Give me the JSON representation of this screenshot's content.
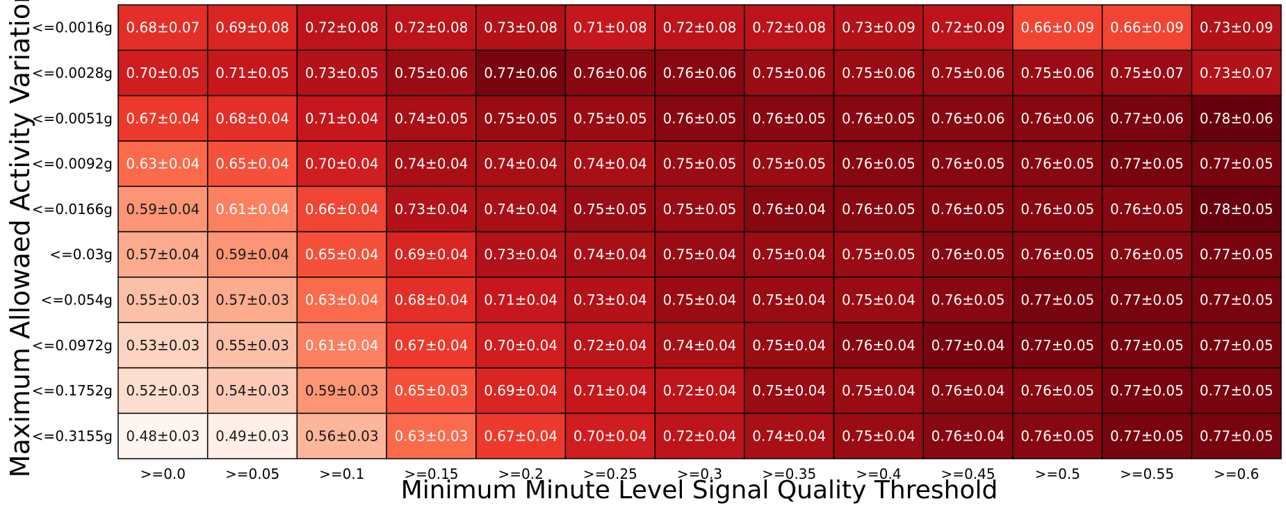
{
  "chart_data": {
    "type": "heatmap",
    "xlabel": "Minimum Minute Level Signal Quality Threshold",
    "ylabel": "Maximum Allowaed Activity Variation",
    "x_categories": [
      ">=0.0",
      ">=0.05",
      ">=0.1",
      ">=0.15",
      ">=0.2",
      ">=0.25",
      ">=0.3",
      ">=0.35",
      ">=0.4",
      ">=0.45",
      ">=0.5",
      ">=0.55",
      ">=0.6"
    ],
    "y_categories": [
      "<=0.0016g",
      "<=0.0028g",
      "<=0.0051g",
      "<=0.0092g",
      "<=0.0166g",
      "<=0.03g",
      "<=0.054g",
      "<=0.0972g",
      "<=0.1752g",
      "<=0.3155g"
    ],
    "values": [
      [
        0.68,
        0.69,
        0.72,
        0.72,
        0.73,
        0.71,
        0.72,
        0.72,
        0.73,
        0.72,
        0.66,
        0.66,
        0.73
      ],
      [
        0.7,
        0.71,
        0.73,
        0.75,
        0.77,
        0.76,
        0.76,
        0.75,
        0.75,
        0.75,
        0.75,
        0.75,
        0.73
      ],
      [
        0.67,
        0.68,
        0.71,
        0.74,
        0.75,
        0.75,
        0.76,
        0.76,
        0.76,
        0.76,
        0.76,
        0.77,
        0.78
      ],
      [
        0.63,
        0.65,
        0.7,
        0.74,
        0.74,
        0.74,
        0.75,
        0.75,
        0.76,
        0.76,
        0.76,
        0.77,
        0.77
      ],
      [
        0.59,
        0.61,
        0.66,
        0.73,
        0.74,
        0.75,
        0.75,
        0.76,
        0.76,
        0.76,
        0.76,
        0.76,
        0.78
      ],
      [
        0.57,
        0.59,
        0.65,
        0.69,
        0.73,
        0.74,
        0.75,
        0.75,
        0.75,
        0.76,
        0.76,
        0.76,
        0.77
      ],
      [
        0.55,
        0.57,
        0.63,
        0.68,
        0.71,
        0.73,
        0.75,
        0.75,
        0.75,
        0.76,
        0.77,
        0.77,
        0.77
      ],
      [
        0.53,
        0.55,
        0.61,
        0.67,
        0.7,
        0.72,
        0.74,
        0.75,
        0.76,
        0.77,
        0.77,
        0.77,
        0.77
      ],
      [
        0.52,
        0.54,
        0.59,
        0.65,
        0.69,
        0.71,
        0.72,
        0.75,
        0.75,
        0.76,
        0.76,
        0.77,
        0.77
      ],
      [
        0.48,
        0.49,
        0.56,
        0.63,
        0.67,
        0.7,
        0.72,
        0.74,
        0.75,
        0.76,
        0.76,
        0.77,
        0.77
      ]
    ],
    "errors": [
      [
        0.07,
        0.08,
        0.08,
        0.08,
        0.08,
        0.08,
        0.08,
        0.08,
        0.09,
        0.09,
        0.09,
        0.09,
        0.09
      ],
      [
        0.05,
        0.05,
        0.05,
        0.06,
        0.06,
        0.06,
        0.06,
        0.06,
        0.06,
        0.06,
        0.06,
        0.07,
        0.07
      ],
      [
        0.04,
        0.04,
        0.04,
        0.05,
        0.05,
        0.05,
        0.05,
        0.05,
        0.05,
        0.06,
        0.06,
        0.06,
        0.06
      ],
      [
        0.04,
        0.04,
        0.04,
        0.04,
        0.04,
        0.04,
        0.05,
        0.05,
        0.05,
        0.05,
        0.05,
        0.05,
        0.05
      ],
      [
        0.04,
        0.04,
        0.04,
        0.04,
        0.04,
        0.05,
        0.05,
        0.04,
        0.05,
        0.05,
        0.05,
        0.05,
        0.05
      ],
      [
        0.04,
        0.04,
        0.04,
        0.04,
        0.04,
        0.04,
        0.04,
        0.04,
        0.05,
        0.05,
        0.05,
        0.05,
        0.05
      ],
      [
        0.03,
        0.03,
        0.04,
        0.04,
        0.04,
        0.04,
        0.04,
        0.04,
        0.04,
        0.05,
        0.05,
        0.05,
        0.05
      ],
      [
        0.03,
        0.03,
        0.04,
        0.04,
        0.04,
        0.04,
        0.04,
        0.04,
        0.04,
        0.04,
        0.05,
        0.05,
        0.05
      ],
      [
        0.03,
        0.03,
        0.03,
        0.03,
        0.04,
        0.04,
        0.04,
        0.04,
        0.04,
        0.04,
        0.05,
        0.05,
        0.05
      ],
      [
        0.03,
        0.03,
        0.03,
        0.03,
        0.04,
        0.04,
        0.04,
        0.04,
        0.04,
        0.04,
        0.05,
        0.05,
        0.05
      ]
    ],
    "value_range": [
      0.48,
      0.78
    ],
    "colormap": "Reds",
    "colors": {
      "low": "#fff5f0",
      "high": "#67000d",
      "cell_border": "#000000"
    },
    "legend": "none",
    "grid": false
  }
}
